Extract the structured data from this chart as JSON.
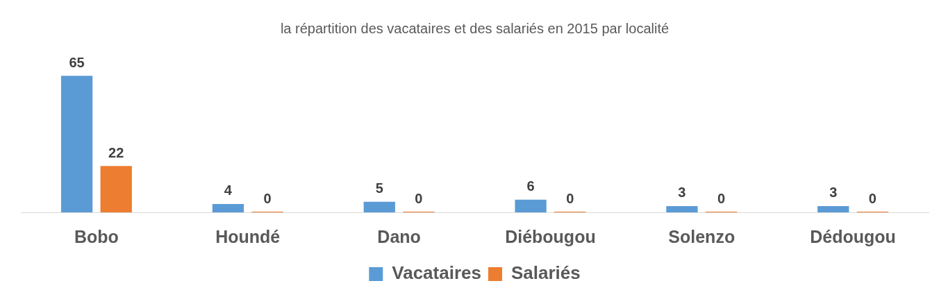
{
  "chart_data": {
    "type": "bar",
    "title": "la répartition des vacataires et des salariés en 2015 par localité",
    "categories": [
      "Bobo",
      "Houndé",
      "Dano",
      "Diébougou",
      "Solenzo",
      "Dédougou"
    ],
    "series": [
      {
        "name": "Vacataires",
        "color": "#5b9bd5",
        "values": [
          65,
          4,
          5,
          6,
          3,
          3
        ]
      },
      {
        "name": "Salariés",
        "color": "#ed7d31",
        "values": [
          22,
          0,
          0,
          0,
          0,
          0
        ]
      }
    ],
    "data_labels": true,
    "legend": "bottom"
  }
}
